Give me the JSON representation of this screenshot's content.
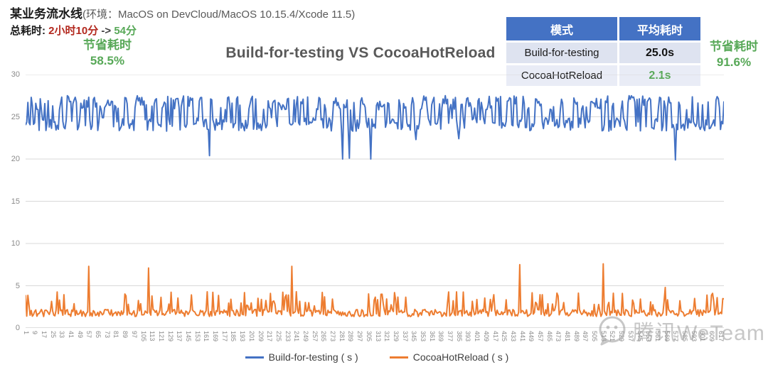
{
  "header": {
    "title": "某业务流水线",
    "subtitle": "(环境：MacOS on DevCloud/MacOS 10.15.4/Xcode 11.5)",
    "total_label": "总耗时:",
    "total_before": "2小时10分",
    "arrow": "->",
    "total_after": "54分",
    "saving_left": {
      "label": "节省耗时",
      "value": "58.5%"
    },
    "saving_right": {
      "label": "节省耗时",
      "value": "91.6%"
    }
  },
  "table": {
    "headers": [
      "模式",
      "平均耗时"
    ],
    "rows": [
      {
        "mode": "Build-for-testing",
        "avg": "25.0s"
      },
      {
        "mode": "CocoaHotReload",
        "avg": "2.1s"
      }
    ]
  },
  "watermark": {
    "text": "腾讯WeTeam",
    "icon": "wechat-icon"
  },
  "chart_data": {
    "type": "line",
    "title": "Build-for-testing VS CocoaHotReload",
    "xlabel": "",
    "ylabel": "",
    "ylim": [
      0,
      30
    ],
    "y_ticks": [
      0,
      5,
      10,
      15,
      20,
      25,
      30
    ],
    "grid": "horizontal",
    "legend_position": "bottom",
    "n_points": 620,
    "x_tick_labels": [
      "1",
      "9",
      "17",
      "25",
      "33",
      "41",
      "49",
      "57",
      "65",
      "73",
      "81",
      "89",
      "97",
      "105",
      "113",
      "121",
      "129",
      "137",
      "145",
      "153",
      "161",
      "169",
      "177",
      "185",
      "193",
      "201",
      "209",
      "217",
      "225",
      "233",
      "241",
      "249",
      "257",
      "265",
      "273",
      "281",
      "289",
      "297",
      "305",
      "313",
      "321",
      "329",
      "337",
      "345",
      "353",
      "361",
      "369",
      "377",
      "385",
      "393",
      "401",
      "409",
      "417",
      "425",
      "433",
      "441",
      "449",
      "457",
      "465",
      "473",
      "481",
      "489",
      "497",
      "505",
      "513",
      "521",
      "529",
      "537",
      "545",
      "553",
      "561",
      "569",
      "577",
      "585",
      "593",
      "601",
      "609",
      "617"
    ],
    "series": [
      {
        "name": "Build-for-testing ( s )",
        "color": "#4472c4",
        "mean": 25.0,
        "typical_band": [
          23.2,
          27.6
        ],
        "anomaly_dips": {
          "163": 20.4,
          "281": 20.0,
          "287": 20.1,
          "306": 20.0,
          "346": 22.3,
          "384": 22.4,
          "576": 19.9
        }
      },
      {
        "name": "CocoaHotReload ( s )",
        "color": "#ed7d31",
        "mean": 2.1,
        "typical_band": [
          1.3,
          4.3
        ],
        "anomaly_peaks": {
          "0": 3.9,
          "56": 7.3,
          "109": 7.1,
          "236": 7.3,
          "438": 7.5,
          "512": 7.6,
          "567": 4.8,
          "604": 3.9,
          "609": 4.1,
          "613": 3.6
        }
      }
    ],
    "synthesis": {
      "seed": 42,
      "blue": {
        "low": [
          23.3,
          24.9
        ],
        "high": [
          25.8,
          27.5
        ],
        "switch_p": 0.33
      },
      "orange": {
        "base": [
          1.35,
          2.2
        ],
        "spike_p": 0.17,
        "spike": [
          2.6,
          4.3
        ]
      }
    }
  }
}
